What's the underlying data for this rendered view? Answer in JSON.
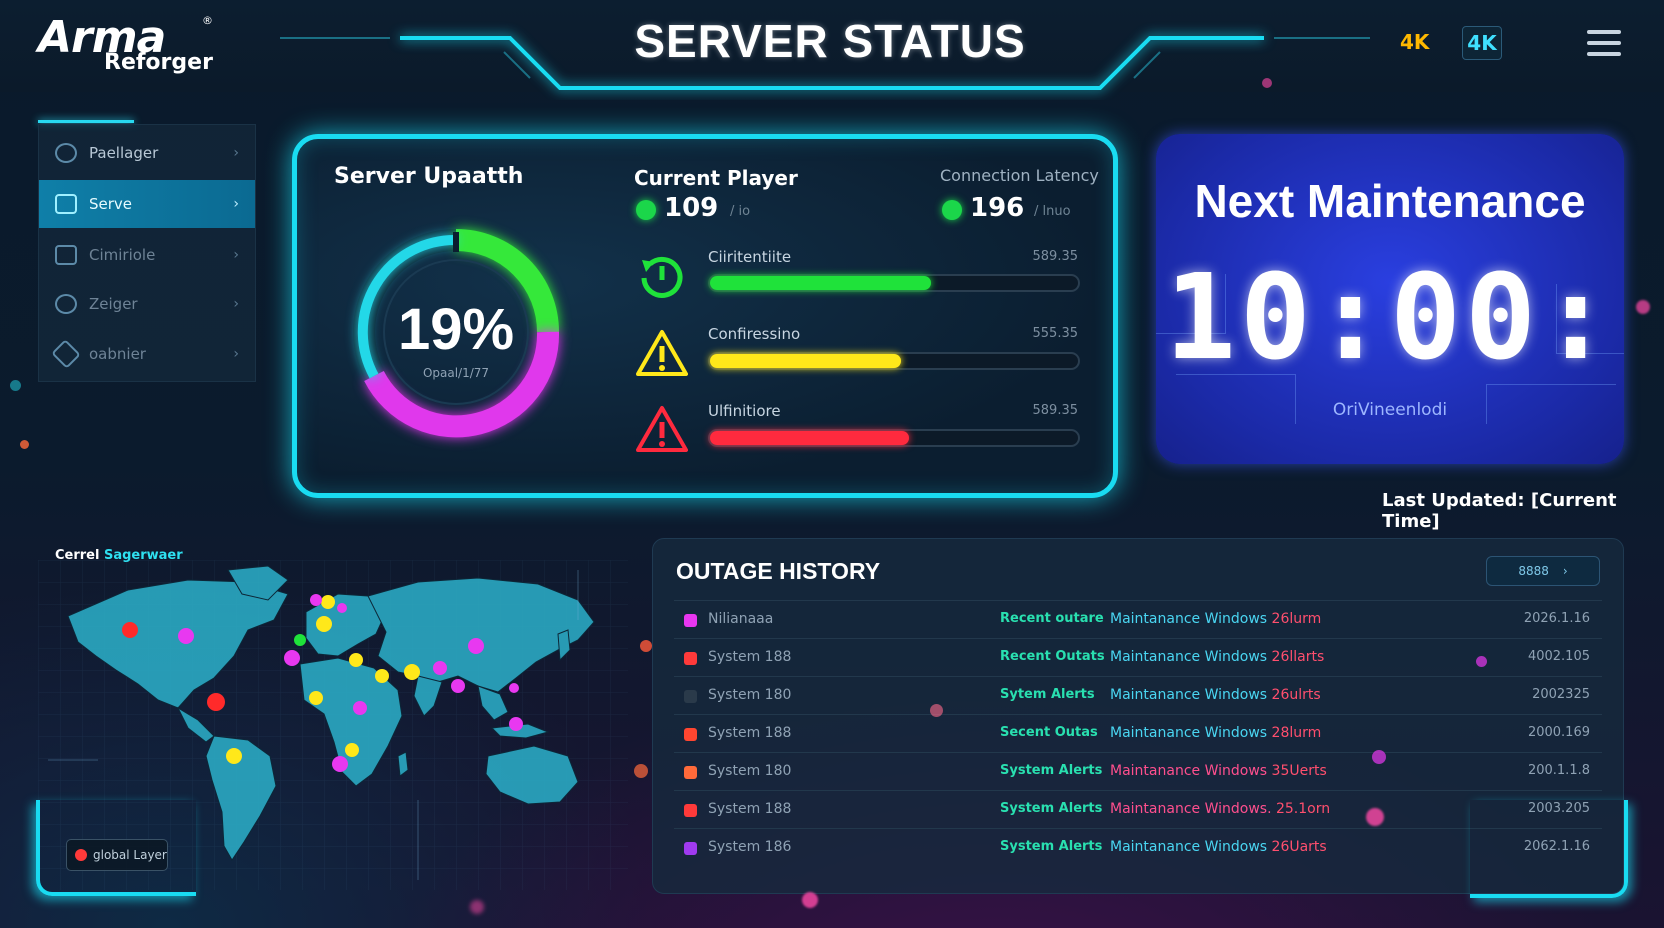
{
  "header": {
    "logo_line1": "Arma",
    "logo_line2": "Reforger",
    "logo_mark": "®",
    "title": "SERVER STATUS",
    "badge_a": "4K",
    "badge_b": "4K",
    "menu_icon": "hamburger-menu-icon"
  },
  "sidebar": {
    "items": [
      {
        "label": "Paellager",
        "icon": "settings-circle-icon",
        "active": false
      },
      {
        "label": "Serve",
        "icon": "server-icon",
        "active": true
      },
      {
        "label": "Cimiriole",
        "icon": "folder-icon",
        "active": false
      },
      {
        "label": "Zeiger",
        "icon": "link-icon",
        "active": false
      },
      {
        "label": "oabnier",
        "icon": "tag-icon",
        "active": false
      }
    ]
  },
  "server": {
    "uptime_label": "Server Upaatth",
    "uptime_value": "19%",
    "uptime_sub": "Opaal/1/77",
    "players_label": "Current Player",
    "players_value": "109",
    "players_unit": "/ io",
    "latency_label": "Connection Latency",
    "latency_value": "196",
    "latency_unit": "/ lnuo",
    "metrics": [
      {
        "label": "Ciiritentiite",
        "value": "589.35",
        "fill": 0.6,
        "color": "#1fe23a",
        "icon": "restart-clock-icon"
      },
      {
        "label": "Confiressino",
        "value": "555.35",
        "fill": 0.52,
        "color": "#ffe81a",
        "icon": "warning-triangle-yellow-icon"
      },
      {
        "label": "Ulfinitiore",
        "value": "589.35",
        "fill": 0.54,
        "color": "#ff2a3e",
        "icon": "warning-triangle-red-icon"
      }
    ]
  },
  "maintenance": {
    "title": "Next Maintenance",
    "time": "10:00:",
    "sub": "OriVineenlodi",
    "last_updated": "Last Updated: [Current Time]"
  },
  "map": {
    "title_a": "Cerrel",
    "title_b": "Sagerwaer",
    "legend": "global Layer"
  },
  "outage": {
    "title": "OUTAGE HISTORY",
    "view_all": "8888",
    "rows": [
      {
        "sys": "Nilianaaa",
        "type": "Recent outare",
        "window": "Maintanance Windows",
        "count": "26lurm",
        "date": "2026.1.16",
        "color": "#e836f0",
        "window_color": "#4ad6f2"
      },
      {
        "sys": "System 188",
        "type": "Recent Outats",
        "window": "Maintanance Windows",
        "count": "26llarts",
        "date": "4002.105",
        "color": "#ff3a3a",
        "window_color": "#4ad6f2"
      },
      {
        "sys": "System 180",
        "type": "Sytem Alerts",
        "window": "Maintanance Windows",
        "count": "26ulrts",
        "date": "2002325",
        "color": "#2a3a4a",
        "window_color": "#4ad6f2"
      },
      {
        "sys": "System 188",
        "type": "Secent Outas",
        "window": "Maintanance Windows",
        "count": "28lurm",
        "date": "2000.169",
        "color": "#ff4630",
        "window_color": "#4ad6f2"
      },
      {
        "sys": "System 180",
        "type": "System Alerts",
        "window": "Maintanance Windows",
        "count": "35Uerts",
        "date": "200.1.1.8",
        "color": "#ff6a3a",
        "window_color": "#ff4f8e"
      },
      {
        "sys": "System 188",
        "type": "System Alerts",
        "window": "Maintanance Windows.",
        "count": "25.1orn",
        "date": "2003.205",
        "color": "#ff3a3a",
        "window_color": "#ff4f8e"
      },
      {
        "sys": "System 186",
        "type": "System Alerts",
        "window": "Maintanance Windows",
        "count": "26Uarts",
        "date": "2062.1.16",
        "color": "#a03af0",
        "window_color": "#4ad6f2"
      }
    ]
  }
}
